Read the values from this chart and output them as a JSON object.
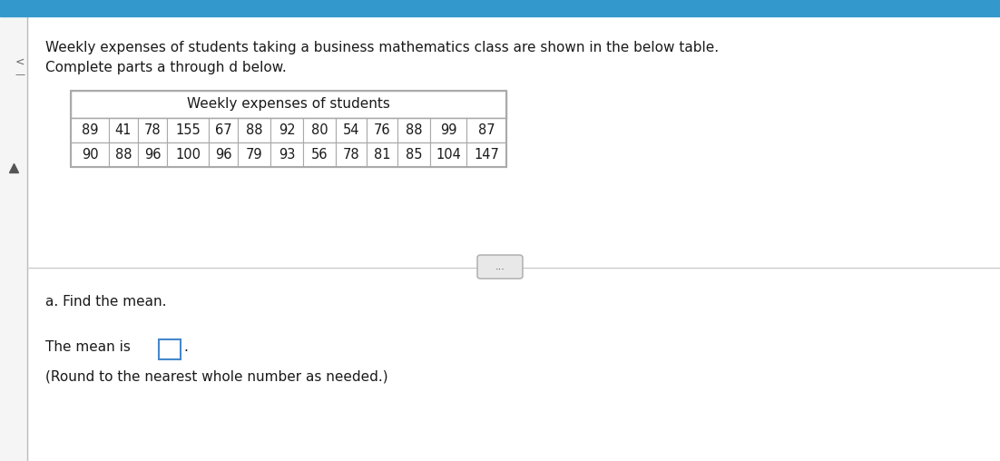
{
  "title_text": "Weekly expenses of students taking a business mathematics class are shown in the below table.",
  "title_text2": "Complete parts a through d below.",
  "table_title": "Weekly expenses of students",
  "row1": [
    89,
    41,
    78,
    155,
    67,
    88,
    92,
    80,
    54,
    76,
    88,
    99,
    87
  ],
  "row2": [
    90,
    88,
    96,
    100,
    96,
    79,
    93,
    56,
    78,
    81,
    85,
    104,
    147
  ],
  "part_a_text": "a. Find the mean.",
  "mean_label": "The mean is",
  "round_note": "(Round to the nearest whole number as needed.)",
  "dots_label": "...",
  "top_bar_color": "#3399cc",
  "main_bg": "#f5f5f5",
  "white": "#ffffff",
  "text_color": "#1a1a1a",
  "border_color": "#aaaaaa",
  "separator_color": "#cccccc",
  "sidebar_bg": "#d0d0d0",
  "answer_box_color": "#4488cc"
}
